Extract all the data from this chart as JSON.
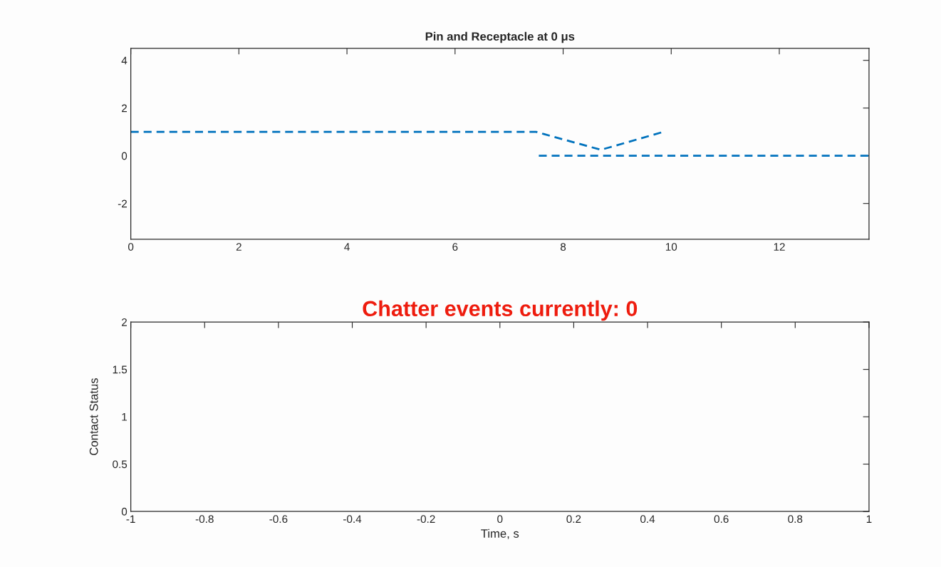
{
  "chart_data": [
    {
      "type": "line",
      "title": "Pin and Receptacle at 0 μs",
      "line_style": "dashed",
      "marker": "none",
      "series": [
        {
          "color": "#0072bd",
          "x": [
            0,
            7.5,
            8.7,
            9.85
          ],
          "values": [
            1,
            1,
            0.25,
            1
          ]
        },
        {
          "color": "#0072bd",
          "x": [
            7.55,
            13.66
          ],
          "values": [
            0,
            0
          ]
        }
      ],
      "xlim": [
        0,
        13.66
      ],
      "ylim": [
        -3.5,
        4.5
      ],
      "xticks": [
        0,
        2,
        4,
        6,
        8,
        10,
        12
      ],
      "yticks": [
        -2,
        0,
        2,
        4
      ],
      "grid": false
    },
    {
      "type": "line",
      "title": "Chatter events currently: 0",
      "xlabel": "Time, s",
      "ylabel": "Contact Status",
      "xlim": [
        -1,
        1
      ],
      "ylim": [
        0,
        2
      ],
      "xticks": [
        -1,
        -0.8,
        -0.6,
        -0.4,
        -0.2,
        0,
        0.2,
        0.4,
        0.6,
        0.8,
        1
      ],
      "yticks": [
        0,
        0.5,
        1,
        1.5,
        2
      ],
      "grid": false
    }
  ]
}
